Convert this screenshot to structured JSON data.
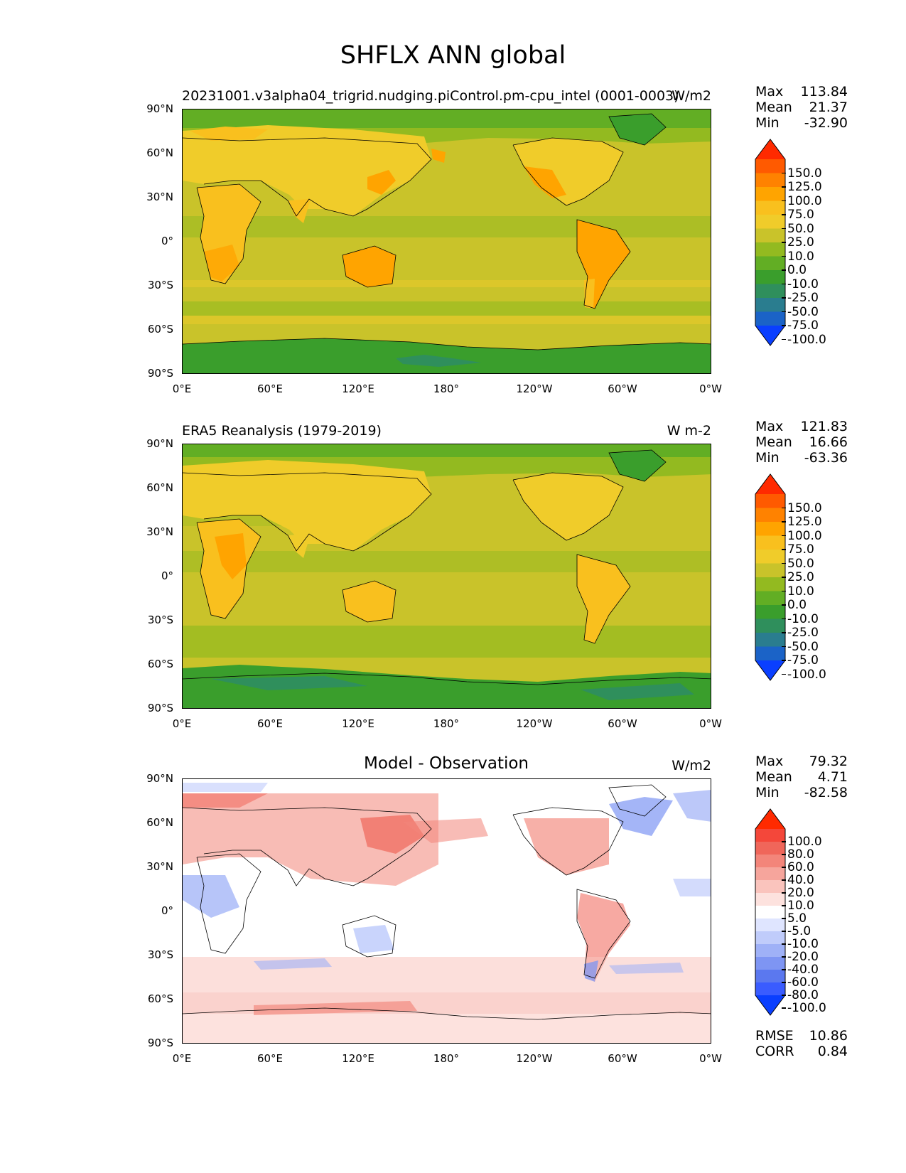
{
  "title": "SHFLX ANN global",
  "lat_labels": [
    "90°N",
    "60°N",
    "30°N",
    "0°",
    "30°S",
    "60°S",
    "90°S"
  ],
  "lon_labels": [
    "0°E",
    "60°E",
    "120°E",
    "180°",
    "120°W",
    "60°W",
    "0°W"
  ],
  "panels": [
    {
      "title": "20231001.v3alpha04_trigrid.nudging.piControl.pm-cpu_intel (0001-0003)",
      "units": "W/m2",
      "stats": {
        "max_label": "Max",
        "max": "113.84",
        "mean_label": "Mean",
        "mean": "21.37",
        "min_label": "Min",
        "min": "-32.90"
      },
      "colorbar": {
        "levels": [
          "150.0",
          "125.0",
          "100.0",
          "75.0",
          "50.0",
          "25.0",
          "10.0",
          "0.0",
          "-10.0",
          "-25.0",
          "-50.0",
          "-75.0",
          "-100.0"
        ],
        "colors": [
          "#ff2a00",
          "#ff5a00",
          "#ff8200",
          "#ffa400",
          "#f9c01e",
          "#f0cc2a",
          "#c9c32a",
          "#93ba20",
          "#62ae24",
          "#3a9e2c",
          "#2f8f5c",
          "#2a7d8f",
          "#1b63c7",
          "#0a3fff"
        ]
      }
    },
    {
      "title": "ERA5 Reanalysis (1979-2019)",
      "units": "W m-2",
      "stats": {
        "max_label": "Max",
        "max": "121.83",
        "mean_label": "Mean",
        "mean": "16.66",
        "min_label": "Min",
        "min": "-63.36"
      },
      "colorbar": {
        "levels": [
          "150.0",
          "125.0",
          "100.0",
          "75.0",
          "50.0",
          "25.0",
          "10.0",
          "0.0",
          "-10.0",
          "-25.0",
          "-50.0",
          "-75.0",
          "-100.0"
        ],
        "colors": [
          "#ff2a00",
          "#ff5a00",
          "#ff8200",
          "#ffa400",
          "#f9c01e",
          "#f0cc2a",
          "#c9c32a",
          "#93ba20",
          "#62ae24",
          "#3a9e2c",
          "#2f8f5c",
          "#2a7d8f",
          "#1b63c7",
          "#0a3fff"
        ]
      }
    },
    {
      "title": "Model - Observation",
      "units": "W/m2",
      "stats": {
        "max_label": "Max",
        "max": "79.32",
        "mean_label": "Mean",
        "mean": "4.71",
        "min_label": "Min",
        "min": "-82.58"
      },
      "colorbar": {
        "levels": [
          "100.0",
          "80.0",
          "60.0",
          "40.0",
          "20.0",
          "10.0",
          "5.0",
          "-5.0",
          "-10.0",
          "-20.0",
          "-40.0",
          "-60.0",
          "-80.0",
          "-100.0"
        ],
        "colors": [
          "#ff2a00",
          "#f4473a",
          "#f0665a",
          "#f3857a",
          "#f6a59c",
          "#fac4bd",
          "#fde2de",
          "#ffffff",
          "#dfe5ff",
          "#c0ccfb",
          "#9fb1f7",
          "#7e95f3",
          "#5b78ef",
          "#3a5cff",
          "#0a3fff"
        ]
      },
      "extra": {
        "rmse_label": "RMSE",
        "rmse": "10.86",
        "corr_label": "CORR",
        "corr": "0.84"
      }
    }
  ]
}
